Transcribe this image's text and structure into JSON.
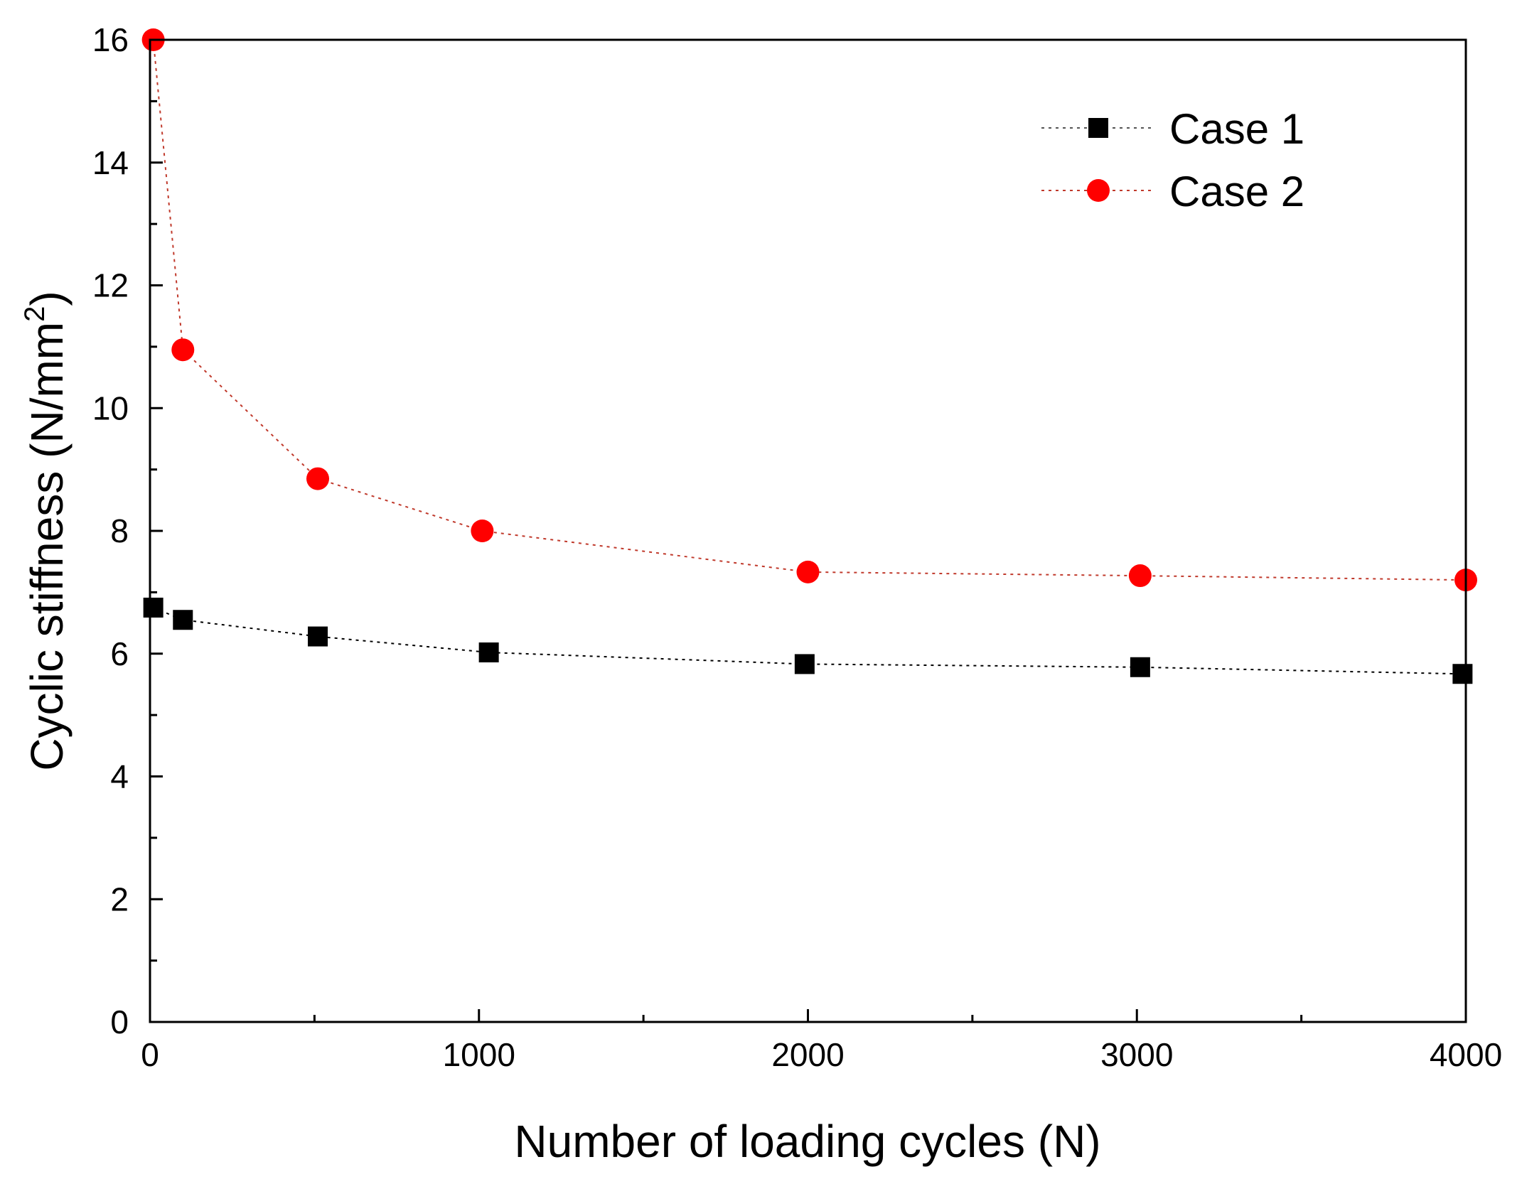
{
  "chart_data": {
    "type": "line",
    "title": "",
    "xlabel": "Number of loading cycles (N)",
    "ylabel": {
      "base": "Cyclic stiffness (N/mm",
      "sup": "2",
      "end": ")"
    },
    "xlim": [
      0,
      4000
    ],
    "ylim": [
      0,
      16
    ],
    "x_ticks": [
      0,
      1000,
      2000,
      3000,
      4000
    ],
    "y_ticks": [
      0,
      2,
      4,
      6,
      8,
      10,
      12,
      14,
      16
    ],
    "x_tick_labels": [
      "0",
      "1000",
      "2000",
      "3000",
      "4000"
    ],
    "y_tick_labels": [
      "0",
      "2",
      "4",
      "6",
      "8",
      "10",
      "12",
      "14",
      "16"
    ],
    "legend_position": "top-right",
    "grid": false,
    "series": [
      {
        "name": "Case 1",
        "marker": "square",
        "color": "#000000",
        "x": [
          10,
          100,
          510,
          1030,
          1990,
          3010,
          3990
        ],
        "values": [
          6.75,
          6.55,
          6.28,
          6.02,
          5.83,
          5.78,
          5.67
        ]
      },
      {
        "name": "Case 2",
        "marker": "circle",
        "color": "#ff0000",
        "line_color": "#c0392b",
        "x": [
          10,
          100,
          510,
          1010,
          2000,
          3010,
          4000
        ],
        "values": [
          16.0,
          10.95,
          8.85,
          8.0,
          7.33,
          7.27,
          7.2
        ]
      }
    ]
  }
}
